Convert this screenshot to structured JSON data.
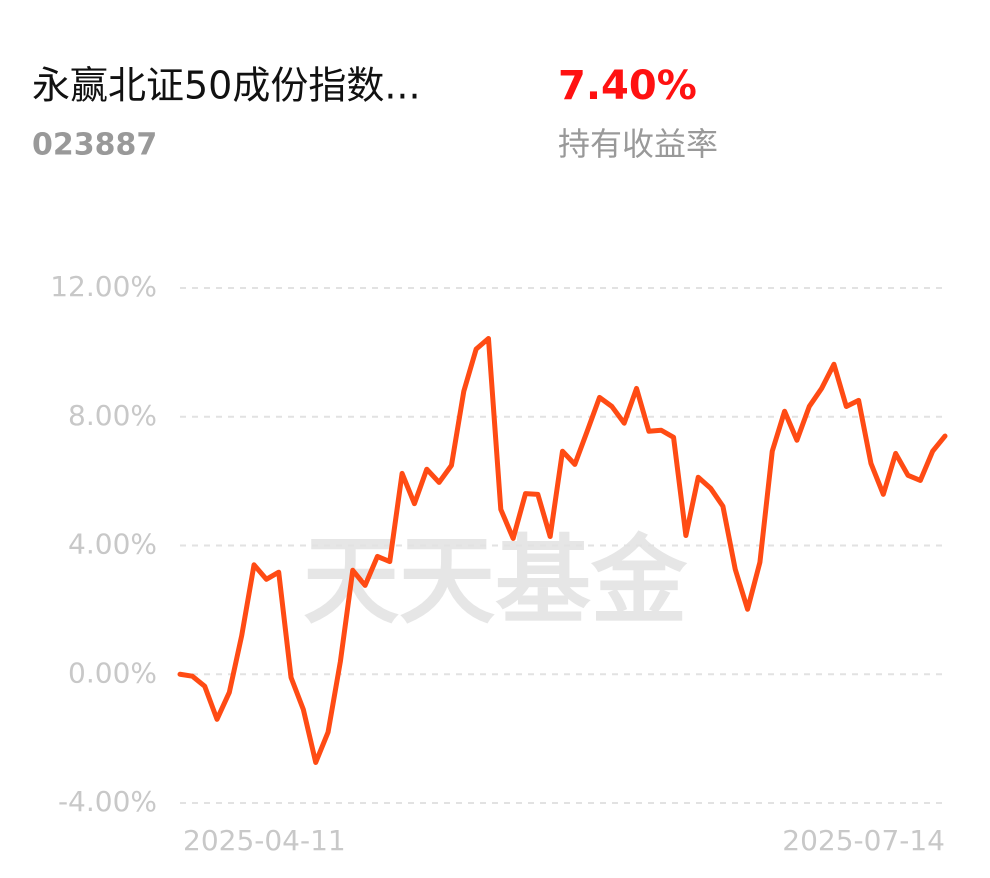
{
  "header": {
    "title": "永赢北证50成份指数...",
    "code": "023887",
    "return_value": "7.40%",
    "return_label": "持有收益率"
  },
  "chart_data": {
    "type": "line",
    "watermark": "天天基金",
    "categories": [
      "2025-04-11",
      null,
      null,
      null,
      null,
      null,
      null,
      null,
      null,
      null,
      null,
      null,
      null,
      null,
      null,
      null,
      null,
      null,
      null,
      null,
      null,
      null,
      null,
      null,
      null,
      null,
      null,
      null,
      null,
      null,
      null,
      null,
      null,
      null,
      null,
      null,
      null,
      null,
      null,
      null,
      null,
      null,
      null,
      null,
      null,
      null,
      null,
      null,
      null,
      null,
      null,
      null,
      null,
      null,
      null,
      null,
      null,
      null,
      null,
      null,
      null,
      null,
      "2025-07-14"
    ],
    "series": [
      {
        "name": "持有收益率",
        "color": "#ff4b14",
        "values": [
          0,
          -0.06,
          -0.37,
          -1.4,
          -0.56,
          1.2,
          3.4,
          2.95,
          3.17,
          -0.1,
          -1.1,
          -2.74,
          -1.8,
          0.4,
          3.23,
          2.76,
          3.66,
          3.5,
          6.24,
          5.3,
          6.37,
          5.96,
          6.49,
          8.79,
          10.1,
          10.43,
          5.12,
          4.22,
          5.61,
          5.59,
          4.28,
          6.93,
          6.52,
          7.55,
          8.6,
          8.32,
          7.8,
          8.88,
          7.55,
          7.58,
          7.36,
          4.31,
          6.12,
          5.78,
          5.22,
          3.26,
          2.02,
          3.48,
          6.93,
          8.17,
          7.27,
          8.32,
          8.88,
          9.63,
          8.32,
          8.51,
          6.55,
          5.59,
          6.86,
          6.18,
          6.02,
          6.93,
          7.4
        ]
      }
    ],
    "ylim": [
      -4,
      12
    ],
    "yticks": [
      {
        "value": -4,
        "label": "-4.00%"
      },
      {
        "value": 0,
        "label": "0.00%"
      },
      {
        "value": 4,
        "label": "4.00%"
      },
      {
        "value": 8,
        "label": "8.00%"
      },
      {
        "value": 12,
        "label": "12.00%"
      }
    ],
    "grid": true
  }
}
